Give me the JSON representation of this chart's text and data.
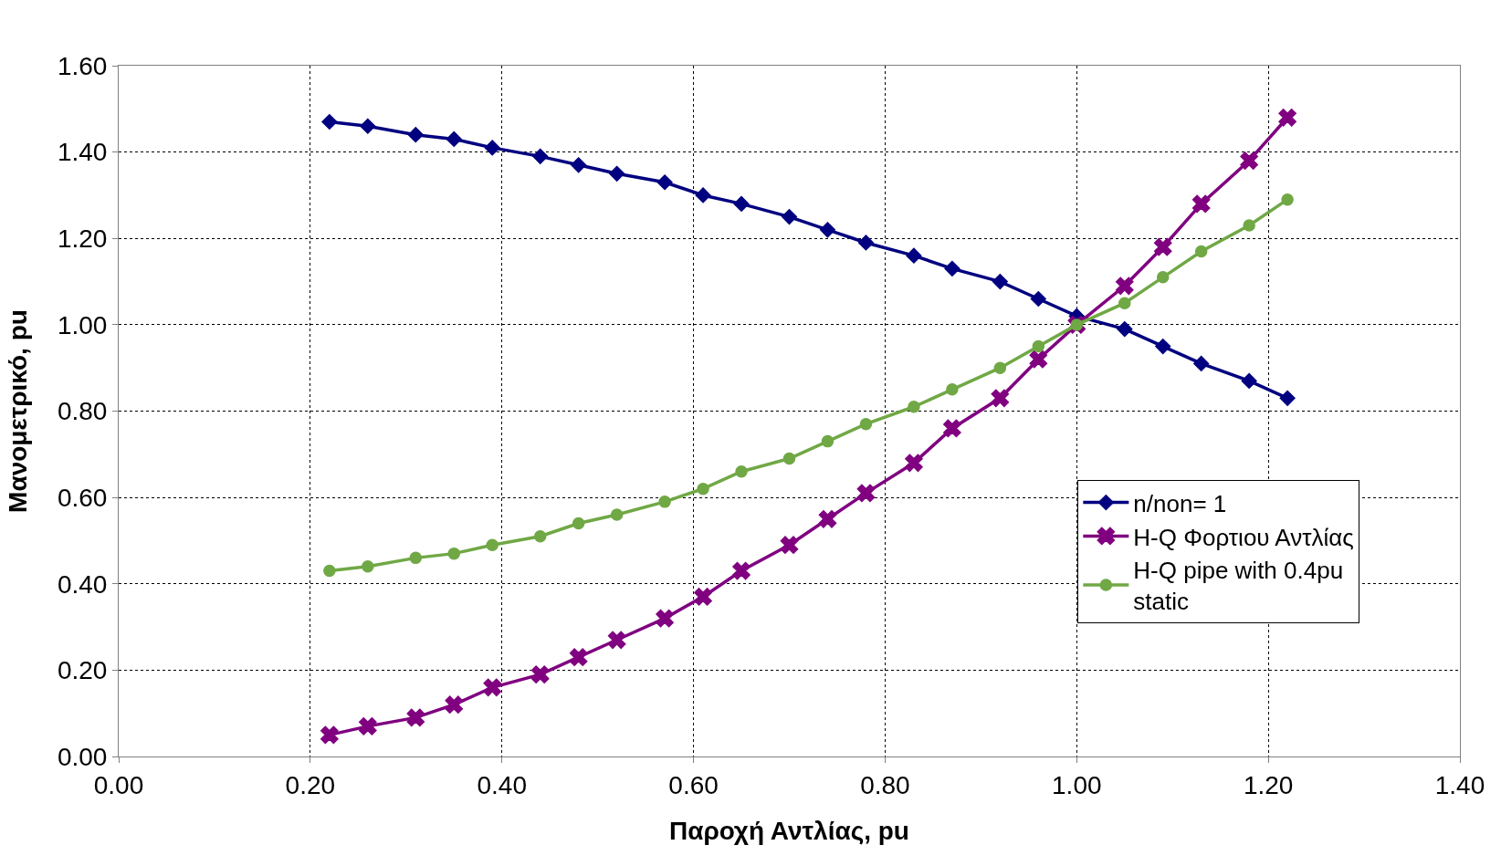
{
  "chart_data": {
    "type": "line",
    "xlabel": "Παροχή Αντλίας, pu",
    "ylabel": "Μανομετρικό, pu",
    "x": [
      0.22,
      0.26,
      0.31,
      0.35,
      0.39,
      0.44,
      0.48,
      0.52,
      0.57,
      0.61,
      0.65,
      0.7,
      0.74,
      0.78,
      0.83,
      0.87,
      0.92,
      0.96,
      1.0,
      1.05,
      1.09,
      1.13,
      1.18,
      1.22
    ],
    "series": [
      {
        "name": "n/non= 1",
        "color": "#000080",
        "marker": "diamond",
        "values": [
          1.47,
          1.46,
          1.44,
          1.43,
          1.41,
          1.39,
          1.37,
          1.35,
          1.33,
          1.3,
          1.28,
          1.25,
          1.22,
          1.19,
          1.16,
          1.13,
          1.1,
          1.06,
          1.02,
          0.99,
          0.95,
          0.91,
          0.87,
          0.83
        ]
      },
      {
        "name": "H-Q Φορτιου Αντλίας",
        "color": "#800080",
        "marker": "cross",
        "values": [
          0.05,
          0.07,
          0.09,
          0.12,
          0.16,
          0.19,
          0.23,
          0.27,
          0.32,
          0.37,
          0.43,
          0.49,
          0.55,
          0.61,
          0.68,
          0.76,
          0.83,
          0.92,
          1.0,
          1.09,
          1.18,
          1.28,
          1.38,
          1.48
        ]
      },
      {
        "name": "H-Q pipe with 0.4pu static",
        "color": "#70a845",
        "marker": "circle",
        "values": [
          0.43,
          0.44,
          0.46,
          0.47,
          0.49,
          0.51,
          0.54,
          0.56,
          0.59,
          0.62,
          0.66,
          0.69,
          0.73,
          0.77,
          0.81,
          0.85,
          0.9,
          0.95,
          1.0,
          1.05,
          1.11,
          1.17,
          1.23,
          1.29
        ]
      }
    ],
    "xlim": [
      0,
      1.4
    ],
    "xticks": [
      {
        "value": 0,
        "label": "0.00"
      },
      {
        "value": 0.2,
        "label": "0.20"
      },
      {
        "value": 0.4,
        "label": "0.40"
      },
      {
        "value": 0.6,
        "label": "0.60"
      },
      {
        "value": 0.8,
        "label": "0.80"
      },
      {
        "value": 1.0,
        "label": "1.00"
      },
      {
        "value": 1.2,
        "label": "1.20"
      },
      {
        "value": 1.4,
        "label": "1.40"
      }
    ],
    "ylim": [
      0,
      1.6
    ],
    "yticks": [
      {
        "value": 0,
        "label": "0.00"
      },
      {
        "value": 0.2,
        "label": "0.20"
      },
      {
        "value": 0.4,
        "label": "0.40"
      },
      {
        "value": 0.6,
        "label": "0.60"
      },
      {
        "value": 0.8,
        "label": "0.80"
      },
      {
        "value": 1.0,
        "label": "1.00"
      },
      {
        "value": 1.2,
        "label": "1.20"
      },
      {
        "value": 1.4,
        "label": "1.40"
      },
      {
        "value": 1.6,
        "label": "1.60"
      }
    ],
    "grid": true,
    "legend": "bottom right",
    "line_style": "solid"
  }
}
